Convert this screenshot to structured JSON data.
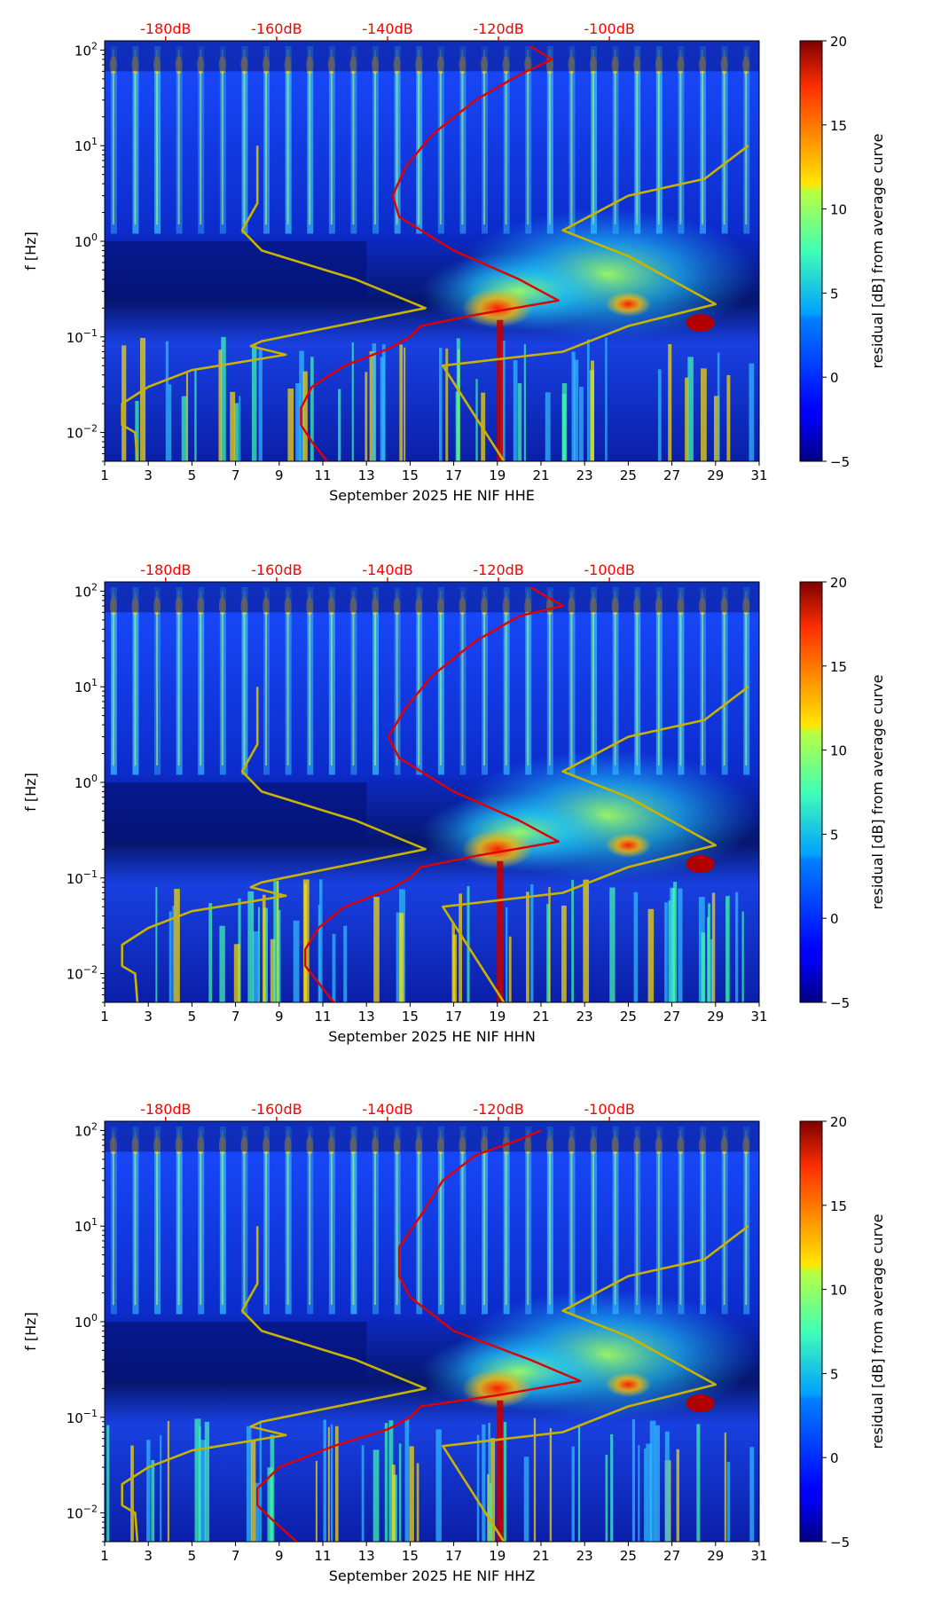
{
  "chart_data": [
    {
      "type": "heatmap",
      "title": "",
      "xlabel": "September 2025 HE NIF  HHE",
      "ylabel": "f [Hz]",
      "x_ticks": [
        "1",
        "3",
        "5",
        "7",
        "9",
        "11",
        "13",
        "15",
        "17",
        "19",
        "21",
        "23",
        "25",
        "27",
        "29",
        "31"
      ],
      "xlim": [
        1,
        31
      ],
      "y_ticks": [
        {
          "exp": "−2",
          "value": 0.01
        },
        {
          "exp": "−1",
          "value": 0.1
        },
        {
          "exp": "0",
          "value": 1
        },
        {
          "exp": "1",
          "value": 10
        },
        {
          "exp": "2",
          "value": 100
        }
      ],
      "ylim": [
        0.005,
        125
      ],
      "top_axis": {
        "ticks": [
          "-180dB",
          "-160dB",
          "-140dB",
          "-120dB",
          "-100dB"
        ],
        "values": [
          -180,
          -160,
          -140,
          -120,
          -100
        ],
        "color": "#ff0000"
      },
      "colorbar": {
        "label": "residual [dB] from average curve",
        "ticks": [
          "−5",
          "0",
          "5",
          "10",
          "15",
          "20"
        ],
        "range": [
          -5,
          20
        ]
      },
      "series": [
        {
          "name": "yellow-curve",
          "color": "#c8b400",
          "points": [
            [
              8,
              10
            ],
            [
              8,
              2.5
            ],
            [
              7.3,
              1.3
            ],
            [
              8.2,
              0.8
            ],
            [
              12.5,
              0.4
            ],
            [
              15.7,
              0.2
            ],
            [
              8.2,
              0.09
            ],
            [
              7.7,
              0.08
            ],
            [
              9.3,
              0.065
            ],
            [
              5,
              0.045
            ],
            [
              3,
              0.03
            ],
            [
              1.8,
              0.02
            ],
            [
              1.8,
              0.012
            ],
            [
              2.4,
              0.01
            ],
            [
              2.5,
              0.005
            ]
          ]
        },
        {
          "name": "yellow-curve-right",
          "color": "#c8b400",
          "points": [
            [
              30.5,
              10
            ],
            [
              28.5,
              4.5
            ],
            [
              25,
              3
            ],
            [
              22,
              1.3
            ],
            [
              25,
              0.7
            ],
            [
              29,
              0.22
            ],
            [
              25,
              0.13
            ],
            [
              22,
              0.07
            ],
            [
              16.5,
              0.05
            ],
            [
              19.3,
              0.005
            ]
          ]
        },
        {
          "name": "red-curve",
          "color": "#e00000",
          "points": [
            [
              11.2,
              0.005
            ],
            [
              10.5,
              0.008
            ],
            [
              10,
              0.012
            ],
            [
              10,
              0.018
            ],
            [
              10.5,
              0.03
            ],
            [
              12,
              0.05
            ],
            [
              14,
              0.075
            ],
            [
              15,
              0.1
            ],
            [
              15.5,
              0.13
            ],
            [
              18,
              0.17
            ],
            [
              21.8,
              0.24
            ],
            [
              20,
              0.4
            ],
            [
              17,
              0.8
            ],
            [
              14.5,
              1.8
            ],
            [
              14.2,
              3
            ],
            [
              14.8,
              6
            ],
            [
              16,
              13
            ],
            [
              18,
              30
            ],
            [
              20,
              55
            ],
            [
              21.5,
              80
            ],
            [
              20.5,
              110
            ]
          ]
        }
      ]
    },
    {
      "type": "heatmap",
      "title": "",
      "xlabel": "September 2025 HE NIF  HHN",
      "ylabel": "f [Hz]",
      "x_ticks": [
        "1",
        "3",
        "5",
        "7",
        "9",
        "11",
        "13",
        "15",
        "17",
        "19",
        "21",
        "23",
        "25",
        "27",
        "29",
        "31"
      ],
      "xlim": [
        1,
        31
      ],
      "y_ticks": [
        {
          "exp": "−2",
          "value": 0.01
        },
        {
          "exp": "−1",
          "value": 0.1
        },
        {
          "exp": "0",
          "value": 1
        },
        {
          "exp": "1",
          "value": 10
        },
        {
          "exp": "2",
          "value": 100
        }
      ],
      "ylim": [
        0.005,
        125
      ],
      "top_axis": {
        "ticks": [
          "-180dB",
          "-160dB",
          "-140dB",
          "-120dB",
          "-100dB"
        ],
        "values": [
          -180,
          -160,
          -140,
          -120,
          -100
        ],
        "color": "#ff0000"
      },
      "colorbar": {
        "label": "residual [dB] from average curve",
        "ticks": [
          "−5",
          "0",
          "5",
          "10",
          "15",
          "20"
        ],
        "range": [
          -5,
          20
        ]
      },
      "series": [
        {
          "name": "yellow-curve",
          "color": "#c8b400",
          "points": [
            [
              8,
              10
            ],
            [
              8,
              2.5
            ],
            [
              7.3,
              1.3
            ],
            [
              8.2,
              0.8
            ],
            [
              12.5,
              0.4
            ],
            [
              15.7,
              0.2
            ],
            [
              8.2,
              0.09
            ],
            [
              7.7,
              0.08
            ],
            [
              9.3,
              0.065
            ],
            [
              5,
              0.045
            ],
            [
              3,
              0.03
            ],
            [
              1.8,
              0.02
            ],
            [
              1.8,
              0.012
            ],
            [
              2.4,
              0.01
            ],
            [
              2.5,
              0.005
            ]
          ]
        },
        {
          "name": "yellow-curve-right",
          "color": "#c8b400",
          "points": [
            [
              30.5,
              10
            ],
            [
              28.5,
              4.5
            ],
            [
              25,
              3
            ],
            [
              22,
              1.3
            ],
            [
              25,
              0.7
            ],
            [
              29,
              0.22
            ],
            [
              25,
              0.13
            ],
            [
              22,
              0.07
            ],
            [
              16.5,
              0.05
            ],
            [
              19.3,
              0.005
            ]
          ]
        },
        {
          "name": "red-curve",
          "color": "#e00000",
          "points": [
            [
              11.5,
              0.005
            ],
            [
              10.8,
              0.008
            ],
            [
              10.2,
              0.012
            ],
            [
              10.2,
              0.018
            ],
            [
              10.8,
              0.03
            ],
            [
              12,
              0.05
            ],
            [
              14,
              0.075
            ],
            [
              15,
              0.1
            ],
            [
              15.5,
              0.13
            ],
            [
              18,
              0.17
            ],
            [
              21.8,
              0.24
            ],
            [
              20,
              0.4
            ],
            [
              17,
              0.8
            ],
            [
              14.5,
              1.8
            ],
            [
              14,
              3
            ],
            [
              14.8,
              6
            ],
            [
              16,
              13
            ],
            [
              18,
              30
            ],
            [
              20,
              55
            ],
            [
              22,
              70
            ],
            [
              20.5,
              110
            ]
          ]
        }
      ]
    },
    {
      "type": "heatmap",
      "title": "",
      "xlabel": "September 2025 HE NIF  HHZ",
      "ylabel": "f [Hz]",
      "x_ticks": [
        "1",
        "3",
        "5",
        "7",
        "9",
        "11",
        "13",
        "15",
        "17",
        "19",
        "21",
        "23",
        "25",
        "27",
        "29",
        "31"
      ],
      "xlim": [
        1,
        31
      ],
      "y_ticks": [
        {
          "exp": "−2",
          "value": 0.01
        },
        {
          "exp": "−1",
          "value": 0.1
        },
        {
          "exp": "0",
          "value": 1
        },
        {
          "exp": "1",
          "value": 10
        },
        {
          "exp": "2",
          "value": 100
        }
      ],
      "ylim": [
        0.005,
        125
      ],
      "top_axis": {
        "ticks": [
          "-180dB",
          "-160dB",
          "-140dB",
          "-120dB",
          "-100dB"
        ],
        "values": [
          -180,
          -160,
          -140,
          -120,
          -100
        ],
        "color": "#ff0000"
      },
      "colorbar": {
        "label": "residual [dB] from average curve",
        "ticks": [
          "−5",
          "0",
          "5",
          "10",
          "15",
          "20"
        ],
        "range": [
          -5,
          20
        ]
      },
      "series": [
        {
          "name": "yellow-curve",
          "color": "#c8b400",
          "points": [
            [
              8,
              10
            ],
            [
              8,
              2.5
            ],
            [
              7.3,
              1.3
            ],
            [
              8.2,
              0.8
            ],
            [
              12.5,
              0.4
            ],
            [
              15.7,
              0.2
            ],
            [
              8.2,
              0.09
            ],
            [
              7.7,
              0.08
            ],
            [
              9.3,
              0.065
            ],
            [
              5,
              0.045
            ],
            [
              3,
              0.03
            ],
            [
              1.8,
              0.02
            ],
            [
              1.8,
              0.012
            ],
            [
              2.4,
              0.01
            ],
            [
              2.5,
              0.005
            ]
          ]
        },
        {
          "name": "yellow-curve-right",
          "color": "#c8b400",
          "points": [
            [
              30.5,
              10
            ],
            [
              28.5,
              4.5
            ],
            [
              25,
              3
            ],
            [
              22,
              1.3
            ],
            [
              25,
              0.7
            ],
            [
              29,
              0.22
            ],
            [
              25,
              0.13
            ],
            [
              22,
              0.07
            ],
            [
              16.5,
              0.05
            ],
            [
              19.3,
              0.005
            ]
          ]
        },
        {
          "name": "red-curve",
          "color": "#e00000",
          "points": [
            [
              9.8,
              0.005
            ],
            [
              8.8,
              0.008
            ],
            [
              8,
              0.012
            ],
            [
              8,
              0.018
            ],
            [
              9,
              0.03
            ],
            [
              11.5,
              0.05
            ],
            [
              14,
              0.075
            ],
            [
              15,
              0.1
            ],
            [
              15.5,
              0.13
            ],
            [
              19,
              0.17
            ],
            [
              22.8,
              0.24
            ],
            [
              20.5,
              0.4
            ],
            [
              17,
              0.8
            ],
            [
              15,
              1.8
            ],
            [
              14.5,
              3
            ],
            [
              14.5,
              6
            ],
            [
              15.5,
              13
            ],
            [
              16.5,
              30
            ],
            [
              18,
              55
            ],
            [
              20,
              80
            ],
            [
              21,
              100
            ]
          ]
        }
      ]
    }
  ]
}
